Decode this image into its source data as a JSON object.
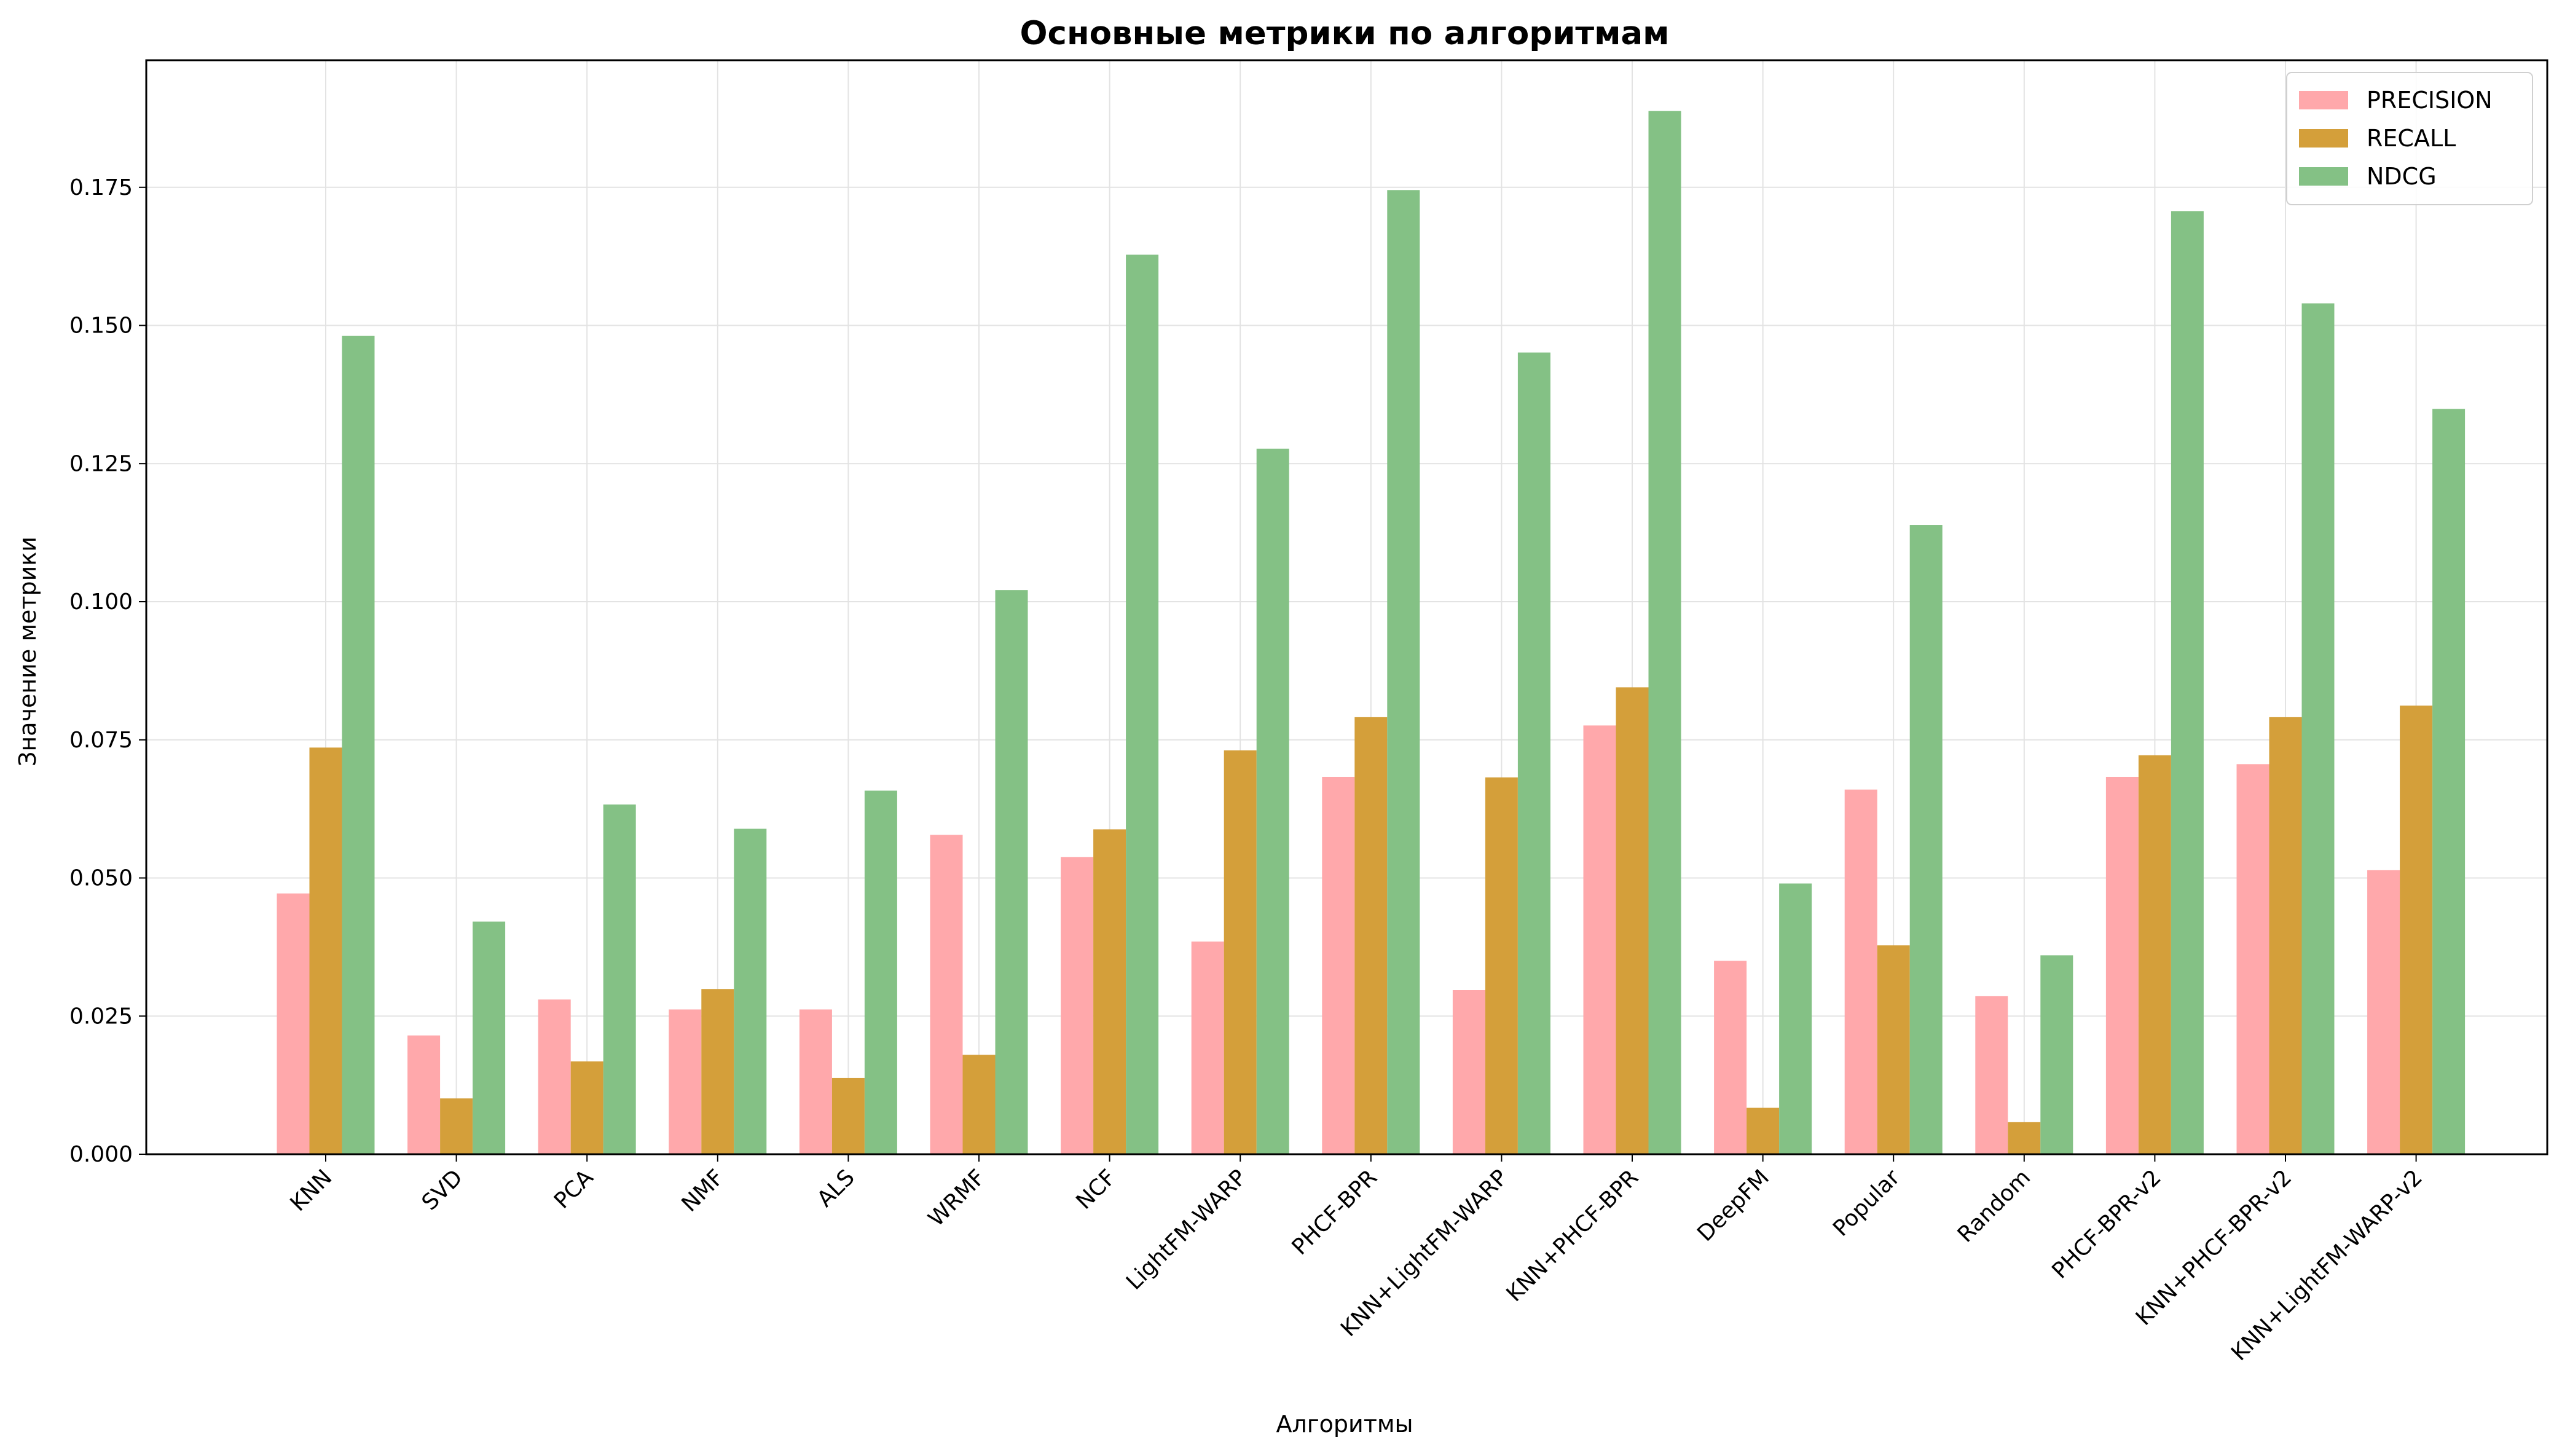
{
  "chart_data": {
    "type": "bar",
    "title": "Основные метрики по алгоритмам",
    "xlabel": "Алгоритмы",
    "ylabel": "Значение метрики",
    "ylim": [
      0,
      0.198
    ],
    "yticks": [
      "0.000",
      "0.025",
      "0.050",
      "0.075",
      "0.100",
      "0.125",
      "0.150",
      "0.175"
    ],
    "grid": true,
    "legend_position": "top-right",
    "categories": [
      "KNN",
      "SVD",
      "PCA",
      "NMF",
      "ALS",
      "WRMF",
      "NCF",
      "LightFM-WARP",
      "PHCF-BPR",
      "KNN+LightFM-WARP",
      "KNN+PHCF-BPR",
      "DeepFM",
      "Popular",
      "Random",
      "PHCF-BPR-v2",
      "KNN+PHCF-BPR-v2",
      "KNN+LightFM-WARP-v2"
    ],
    "series": [
      {
        "name": "PRECISION",
        "color": "#FFA8AB",
        "values": [
          0.0472,
          0.0215,
          0.028,
          0.0262,
          0.0262,
          0.0578,
          0.0538,
          0.0385,
          0.0683,
          0.0297,
          0.0776,
          0.035,
          0.066,
          0.0286,
          0.0683,
          0.0706,
          0.0514
        ]
      },
      {
        "name": "RECALL",
        "color": "#D49F3A",
        "values": [
          0.0736,
          0.0101,
          0.0168,
          0.0299,
          0.0138,
          0.018,
          0.0588,
          0.0731,
          0.0791,
          0.0682,
          0.0845,
          0.0084,
          0.0378,
          0.0058,
          0.0722,
          0.0791,
          0.0812
        ]
      },
      {
        "name": "NDCG",
        "color": "#84C185",
        "values": [
          0.1481,
          0.0421,
          0.0633,
          0.0589,
          0.0658,
          0.1021,
          0.1628,
          0.1277,
          0.1745,
          0.1451,
          0.1888,
          0.049,
          0.1139,
          0.036,
          0.1707,
          0.154,
          0.1349
        ]
      }
    ]
  }
}
